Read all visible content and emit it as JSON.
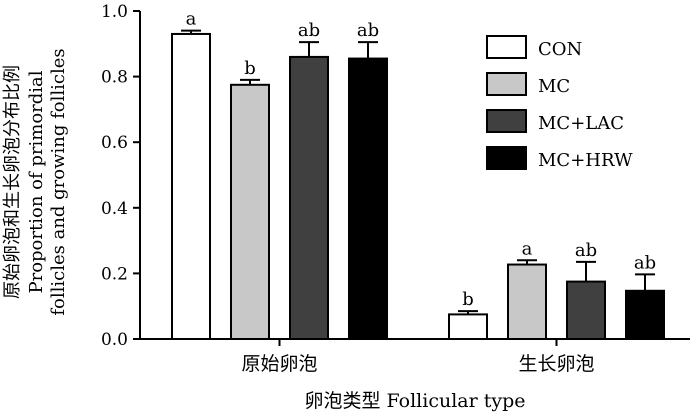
{
  "chart_data": {
    "type": "bar",
    "categories": [
      "原始卵泡",
      "生长卵泡"
    ],
    "series": [
      {
        "name": "CON",
        "color": "#ffffff",
        "values": [
          0.93,
          0.075
        ],
        "errors": [
          0.01,
          0.01
        ],
        "labels": [
          "a",
          "b"
        ]
      },
      {
        "name": "MC",
        "color": "#c8c8c8",
        "values": [
          0.775,
          0.227
        ],
        "errors": [
          0.015,
          0.013
        ],
        "labels": [
          "b",
          "a"
        ]
      },
      {
        "name": "MC+LAC",
        "color": "#404040",
        "values": [
          0.86,
          0.175
        ],
        "errors": [
          0.045,
          0.06
        ],
        "labels": [
          "ab",
          "ab"
        ]
      },
      {
        "name": "MC+HRW",
        "color": "#000000",
        "values": [
          0.855,
          0.147
        ],
        "errors": [
          0.05,
          0.05
        ],
        "labels": [
          "ab",
          "ab"
        ]
      }
    ],
    "ylim": [
      0,
      1.0
    ],
    "yticks": [
      "0.0",
      "0.2",
      "0.4",
      "0.6",
      "0.8",
      "1.0"
    ],
    "ylabel_lines": [
      "原始卵泡和生长卵泡分布比例",
      "Proportion of primordial",
      "follicles and growing follicles"
    ],
    "xlabel": "卵泡类型 Follicular type",
    "legend_position": "right",
    "grid": false
  }
}
